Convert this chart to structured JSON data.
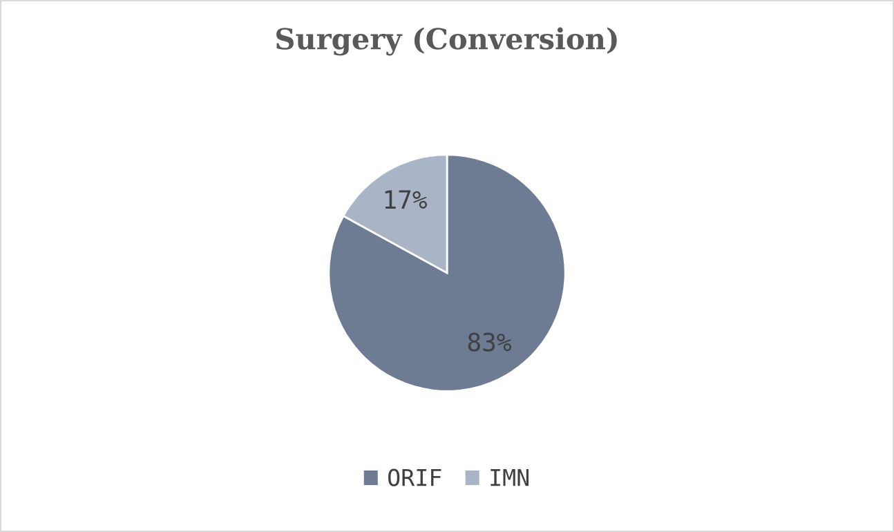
{
  "chart_data": {
    "type": "pie",
    "title": "Surgery (Conversion)",
    "categories": [
      "ORIF",
      "IMN"
    ],
    "values": [
      83,
      17
    ],
    "colors": [
      "#6d7b93",
      "#a9b4c6"
    ],
    "value_labels": [
      "83%",
      "17%"
    ],
    "legend": "bottom"
  }
}
